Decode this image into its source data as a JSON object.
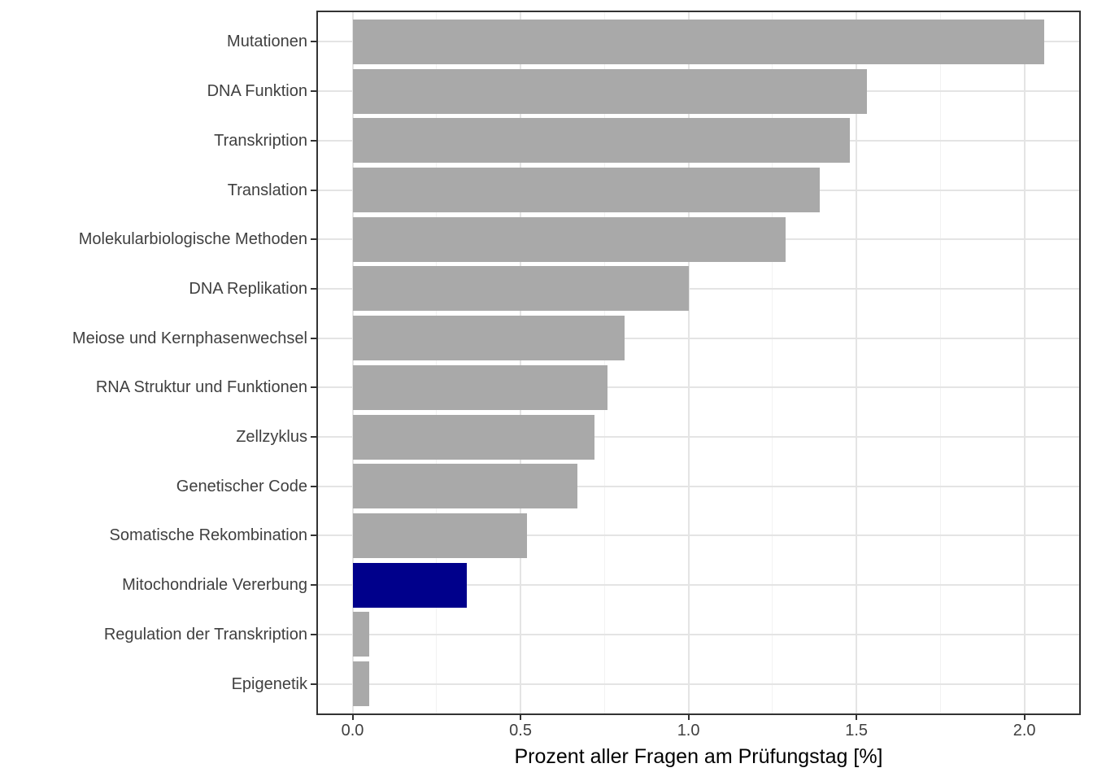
{
  "chart_data": {
    "type": "bar",
    "orientation": "horizontal",
    "title": "",
    "xlabel": "Prozent aller Fragen am Prüfungstag [%]",
    "ylabel": "",
    "categories": [
      "Mutationen",
      "DNA Funktion",
      "Transkription",
      "Translation",
      "Molekularbiologische Methoden",
      "DNA Replikation",
      "Meiose und Kernphasenwechsel",
      "RNA Struktur und Funktionen",
      "Zellzyklus",
      "Genetischer Code",
      "Somatische Rekombination",
      "Mitochondriale Vererbung",
      "Regulation der Transkription",
      "Epigenetik"
    ],
    "values": [
      2.06,
      1.53,
      1.48,
      1.39,
      1.29,
      1.0,
      0.81,
      0.76,
      0.72,
      0.67,
      0.52,
      0.34,
      0.05,
      0.05
    ],
    "highlight_index": 11,
    "highlighted_category": "Mitochondriale Vererbung",
    "x_ticks": [
      0.0,
      0.5,
      1.0,
      1.5,
      2.0
    ],
    "x_tick_labels": [
      "0.0",
      "0.5",
      "1.0",
      "1.5",
      "2.0"
    ],
    "x_minor_ticks": [
      0.25,
      0.75,
      1.25,
      1.75
    ],
    "xlim": [
      -0.103,
      2.163
    ],
    "grid": true,
    "legend_position": "none"
  },
  "style": {
    "bar_color": "#A9A9A9",
    "highlight_color": "#00008B",
    "panel_border_color": "#333333",
    "grid_major_color": "#E4E4E4",
    "grid_minor_color": "#F2F2F2",
    "axis_text_color": "#404040",
    "axis_title_color": "#000000",
    "tick_color": "#333333",
    "background_color": "#FFFFFF"
  }
}
